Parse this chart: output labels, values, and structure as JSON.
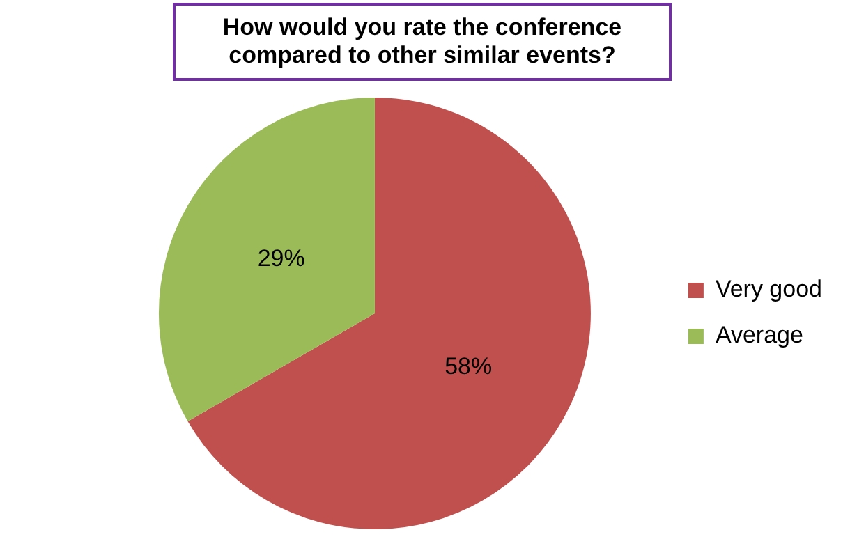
{
  "chart_data": {
    "type": "pie",
    "title": "How would you rate the conference compared to other similar events?",
    "categories": [
      "Very good",
      "Average"
    ],
    "values": [
      58,
      29
    ],
    "colors": [
      "#c0504d",
      "#9bbb59"
    ],
    "value_labels": [
      "58%",
      "29%"
    ],
    "legend": "right"
  }
}
